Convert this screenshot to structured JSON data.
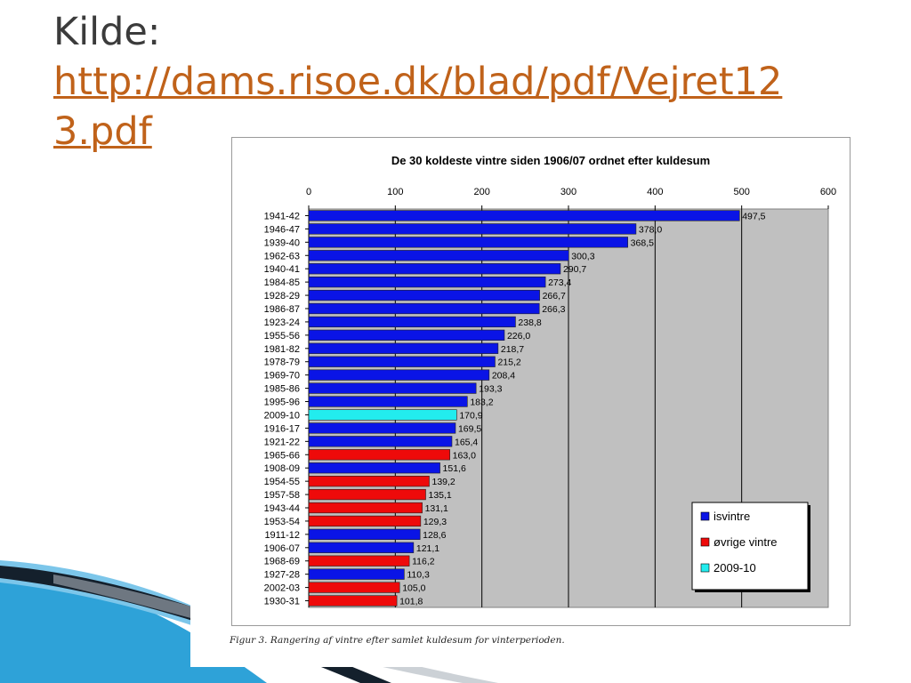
{
  "slide": {
    "title_label": "Kilde:",
    "source_link": "http://dams.risoe.dk/blad/pdf/Vejret12",
    "source_link_cont": "3.pdf"
  },
  "figure": {
    "caption": "Figur 3. Rangering af vintre efter samlet kuldesum for vinterperioden."
  },
  "colors": {
    "isvintre": "#0a14e6",
    "ovrige": "#ee0a0a",
    "current": "#22ecee",
    "plot_bg": "#c0c0c0",
    "link": "#c0621a",
    "swoosh_blue": "#2ea2d8",
    "swoosh_dark": "#14202c"
  },
  "icons": [
    "swoosh-decoration"
  ],
  "chart_data": {
    "type": "bar",
    "orientation": "horizontal",
    "title": "De 30 koldeste vintre siden 1906/07 ordnet efter kuldesum",
    "xlim": [
      0,
      600
    ],
    "xticks": [
      "0",
      "100",
      "200",
      "300",
      "400",
      "500",
      "600"
    ],
    "grid": true,
    "legend_position": "bottom-right",
    "legend": [
      {
        "key": "isvintre",
        "label": "isvintre"
      },
      {
        "key": "ovrige",
        "label": "øvrige vintre"
      },
      {
        "key": "current",
        "label": "2009-10"
      }
    ],
    "categories": [
      "1941-42",
      "1946-47",
      "1939-40",
      "1962-63",
      "1940-41",
      "1984-85",
      "1928-29",
      "1986-87",
      "1923-24",
      "1955-56",
      "1981-82",
      "1978-79",
      "1969-70",
      "1985-86",
      "1995-96",
      "2009-10",
      "1916-17",
      "1921-22",
      "1965-66",
      "1908-09",
      "1954-55",
      "1957-58",
      "1943-44",
      "1953-54",
      "1911-12",
      "1906-07",
      "1968-69",
      "1927-28",
      "2002-03",
      "1930-31"
    ],
    "values": [
      497.5,
      378.0,
      368.5,
      300.3,
      290.7,
      273.4,
      266.7,
      266.3,
      238.8,
      226.0,
      218.7,
      215.2,
      208.4,
      193.3,
      183.2,
      170.9,
      169.5,
      165.4,
      163.0,
      151.6,
      139.2,
      135.1,
      131.1,
      129.3,
      128.6,
      121.1,
      116.2,
      110.3,
      105.0,
      101.8
    ],
    "value_labels": [
      "497,5",
      "378,0",
      "368,5",
      "300,3",
      "290,7",
      "273,4",
      "266,7",
      "266,3",
      "238,8",
      "226,0",
      "218,7",
      "215,2",
      "208,4",
      "193,3",
      "183,2",
      "170,9",
      "169,5",
      "165,4",
      "163,0",
      "151,6",
      "139,2",
      "135,1",
      "131,1",
      "129,3",
      "128,6",
      "121,1",
      "116,2",
      "110,3",
      "105,0",
      "101,8"
    ],
    "groups": [
      "isvintre",
      "isvintre",
      "isvintre",
      "isvintre",
      "isvintre",
      "isvintre",
      "isvintre",
      "isvintre",
      "isvintre",
      "isvintre",
      "isvintre",
      "isvintre",
      "isvintre",
      "isvintre",
      "isvintre",
      "current",
      "isvintre",
      "isvintre",
      "ovrige",
      "isvintre",
      "ovrige",
      "ovrige",
      "ovrige",
      "ovrige",
      "isvintre",
      "isvintre",
      "ovrige",
      "isvintre",
      "ovrige",
      "ovrige"
    ]
  }
}
